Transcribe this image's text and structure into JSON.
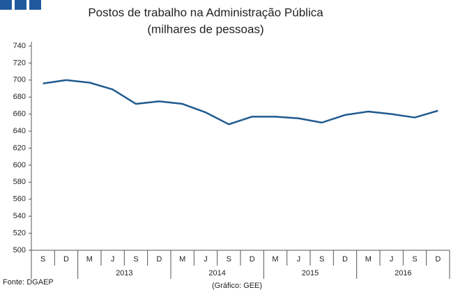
{
  "chart_data": {
    "type": "line",
    "title": "Postos de trabalho na Administração Pública",
    "subtitle": "(milhares de pessoas)",
    "categories": [
      "S",
      "D",
      "M",
      "J",
      "S",
      "D",
      "M",
      "J",
      "S",
      "D",
      "M",
      "J",
      "S",
      "D",
      "M",
      "J",
      "S",
      "D"
    ],
    "category_years": [
      null,
      null,
      "2013",
      "2013",
      "2013",
      "2013",
      "2014",
      "2014",
      "2014",
      "2014",
      "2015",
      "2015",
      "2015",
      "2015",
      "2016",
      "2016",
      "2016",
      "2016"
    ],
    "series": [
      {
        "color": "#1f5a8f",
        "values": [
          696,
          700,
          697,
          689,
          672,
          675,
          672,
          662,
          648,
          657,
          657,
          655,
          650,
          659,
          663,
          660,
          656,
          664
        ]
      }
    ],
    "ylim": [
      500,
      740
    ],
    "yticks": [
      500,
      520,
      540,
      560,
      580,
      600,
      620,
      640,
      660,
      680,
      700,
      720,
      740
    ],
    "grid": false,
    "source": "Fonte: DGAEP",
    "credit": "(Gráfico: GEE)"
  }
}
